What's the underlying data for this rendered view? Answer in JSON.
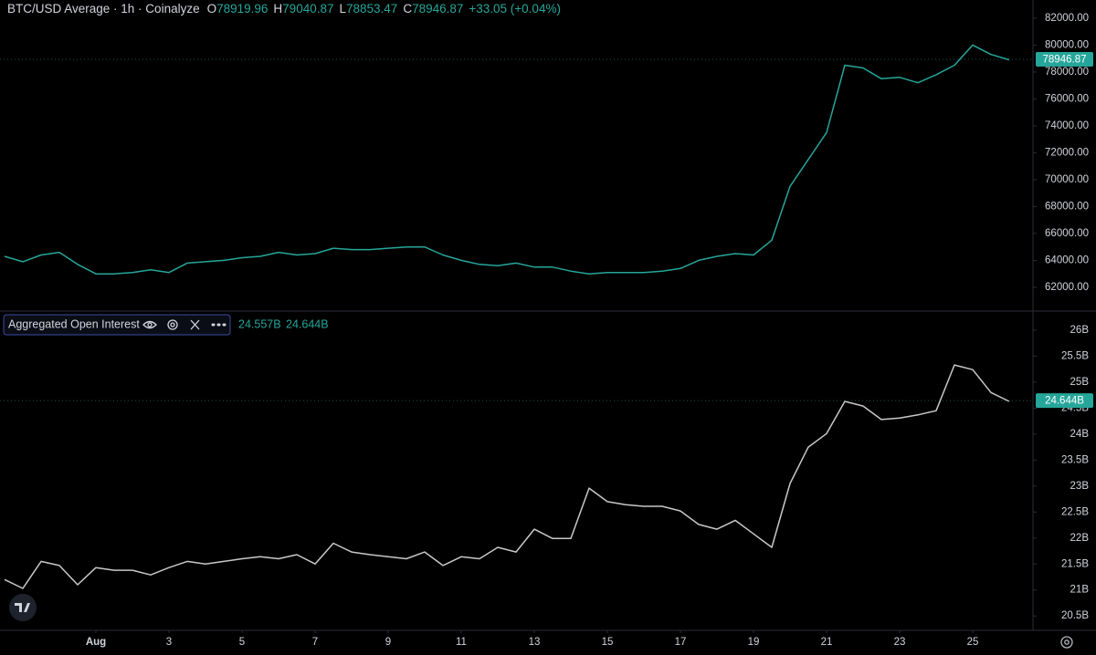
{
  "chart_data": [
    {
      "type": "line",
      "title": "BTC/USD Average · 1h · Coinalyze",
      "ohlc": [
        {
          "label": "O",
          "value": "78919.96"
        },
        {
          "label": "H",
          "value": "79040.87"
        },
        {
          "label": "L",
          "value": "78853.47"
        },
        {
          "label": "C",
          "value": "78946.87"
        }
      ],
      "change": "+33.05 (+0.04%)",
      "color": "#26a69a",
      "x": [
        -1.5,
        -1,
        -0.5,
        0,
        0.5,
        1,
        1.5,
        2,
        2.5,
        3,
        3.5,
        4,
        4.5,
        5,
        5.5,
        6,
        6.5,
        7,
        7.5,
        8,
        8.5,
        9,
        9.5,
        10,
        10.5,
        11,
        11.5,
        12,
        12.5,
        13,
        13.5,
        14,
        14.5,
        15,
        15.5,
        16,
        16.5,
        17,
        17.5,
        18,
        18.5,
        19,
        19.5,
        20,
        20.5,
        21,
        21.5,
        22,
        22.5,
        23,
        23.5,
        24,
        24.5,
        25,
        25.5,
        26
      ],
      "values": [
        64300,
        63900,
        64400,
        64600,
        63700,
        63000,
        63000,
        63100,
        63300,
        63100,
        63800,
        63900,
        64000,
        64200,
        64300,
        64600,
        64400,
        64500,
        64900,
        64800,
        64800,
        64900,
        65000,
        65000,
        64400,
        64000,
        63700,
        63600,
        63800,
        63500,
        63500,
        63200,
        63000,
        63100,
        63100,
        63100,
        63200,
        63400,
        64000,
        64300,
        64500,
        64400,
        65500,
        69500,
        71500,
        73500,
        78500,
        78300,
        77500,
        77600,
        77200,
        77800,
        78500,
        80000,
        79300,
        78900
      ],
      "xlim": [
        -1.625,
        26.625
      ],
      "ylim": [
        60300,
        83350
      ],
      "yticks": [
        {
          "value": 62000,
          "label": "62000.00"
        },
        {
          "value": 64000,
          "label": "64000.00"
        },
        {
          "value": 66000,
          "label": "66000.00"
        },
        {
          "value": 68000,
          "label": "68000.00"
        },
        {
          "value": 70000,
          "label": "70000.00"
        },
        {
          "value": 72000,
          "label": "72000.00"
        },
        {
          "value": 74000,
          "label": "74000.00"
        },
        {
          "value": 76000,
          "label": "76000.00"
        },
        {
          "value": 78000,
          "label": "78000.00"
        },
        {
          "value": 80000,
          "label": "80000.00"
        },
        {
          "value": 82000,
          "label": "82000.00"
        }
      ],
      "last_value": 78946.87
    },
    {
      "type": "line",
      "title": "Aggregated Open Interest",
      "legend_values": [
        "24.557B",
        "24.644B"
      ],
      "color": "#c8c8c8",
      "x": [
        -1.5,
        -1,
        -0.5,
        0,
        0.5,
        1,
        1.5,
        2,
        2.5,
        3,
        3.5,
        4,
        4.5,
        5,
        5.5,
        6,
        6.5,
        7,
        7.5,
        8,
        8.5,
        9,
        9.5,
        10,
        10.5,
        11,
        11.5,
        12,
        12.5,
        13,
        13.5,
        14,
        14.5,
        15,
        15.5,
        16,
        16.5,
        17,
        17.5,
        18,
        18.5,
        19,
        19.5,
        20,
        20.5,
        21,
        21.5,
        22,
        22.5,
        23,
        23.5,
        24,
        24.5,
        25,
        25.5,
        26
      ],
      "values": [
        21.2,
        21.03,
        21.55,
        21.47,
        21.1,
        21.43,
        21.38,
        21.38,
        21.29,
        21.43,
        21.55,
        21.5,
        21.55,
        21.6,
        21.64,
        21.6,
        21.68,
        21.5,
        21.9,
        21.73,
        21.68,
        21.64,
        21.6,
        21.73,
        21.47,
        21.64,
        21.6,
        21.82,
        21.73,
        22.17,
        21.99,
        21.99,
        22.96,
        22.7,
        22.64,
        22.61,
        22.61,
        22.52,
        22.26,
        22.17,
        22.34,
        22.08,
        21.82,
        23.05,
        23.75,
        24.01,
        24.63,
        24.54,
        24.28,
        24.31,
        24.37,
        24.45,
        25.33,
        25.24,
        24.8,
        24.63
      ],
      "xlim": [
        -1.625,
        26.625
      ],
      "xticks": [
        {
          "value": 1,
          "label": "Aug"
        },
        3,
        5,
        7,
        9,
        11,
        13,
        15,
        17,
        19,
        21,
        23,
        25
      ],
      "ylim": [
        20.24,
        26.35
      ],
      "yticks": [
        {
          "value": 20.5,
          "label": "20.5B"
        },
        {
          "value": 21,
          "label": "21B"
        },
        {
          "value": 21.5,
          "label": "21.5B"
        },
        {
          "value": 22,
          "label": "22B"
        },
        {
          "value": 22.5,
          "label": "22.5B"
        },
        {
          "value": 23,
          "label": "23B"
        },
        {
          "value": 23.5,
          "label": "23.5B"
        },
        {
          "value": 24,
          "label": "24B"
        },
        {
          "value": 24.5,
          "label": "24.5B"
        },
        {
          "value": 25,
          "label": "25B"
        },
        {
          "value": 25.5,
          "label": "25.5B"
        },
        {
          "value": 26,
          "label": "26B"
        }
      ],
      "last_value": {
        "value": 24.644,
        "label": "24.644B"
      }
    }
  ]
}
